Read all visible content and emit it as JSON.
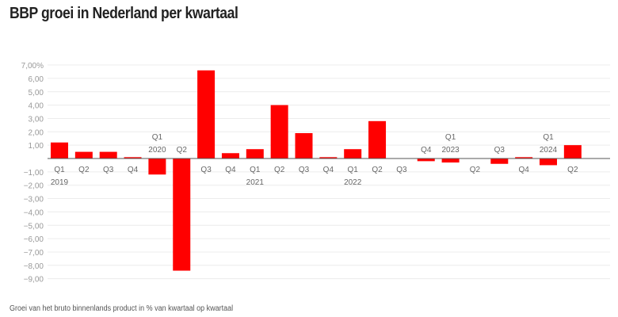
{
  "chart_data": {
    "type": "bar",
    "title": "BBP groei in Nederland per kwartaal",
    "footnote": "Groei van het bruto binnenlands product in % van kwartaal op kwartaal",
    "ylim": [
      -9,
      7
    ],
    "yticks": [
      7,
      6,
      5,
      4,
      3,
      2,
      1,
      -1,
      -2,
      -3,
      -4,
      -5,
      -6,
      -7,
      -8,
      -9
    ],
    "ytick_labels": [
      "7,00%",
      "6,00",
      "5,00",
      "4,00",
      "3,00",
      "2,00",
      "1,00",
      "−1,00",
      "−2,00",
      "−3,00",
      "−4,00",
      "−5,00",
      "−6,00",
      "−7,00",
      "−8,00",
      "−9,00"
    ],
    "grid": true,
    "bar_color": "#ff0000",
    "categories": [
      {
        "q": "Q1",
        "year": "2019"
      },
      {
        "q": "Q2"
      },
      {
        "q": "Q3"
      },
      {
        "q": "Q4"
      },
      {
        "q": "Q1",
        "year": "2020"
      },
      {
        "q": "Q2"
      },
      {
        "q": "Q3"
      },
      {
        "q": "Q4"
      },
      {
        "q": "Q1",
        "year": "2021"
      },
      {
        "q": "Q2"
      },
      {
        "q": "Q3"
      },
      {
        "q": "Q4"
      },
      {
        "q": "Q1",
        "year": "2022"
      },
      {
        "q": "Q2"
      },
      {
        "q": "Q3"
      },
      {
        "q": "Q4"
      },
      {
        "q": "Q1",
        "year": "2023"
      },
      {
        "q": "Q2"
      },
      {
        "q": "Q3"
      },
      {
        "q": "Q4"
      },
      {
        "q": "Q1",
        "year": "2024"
      },
      {
        "q": "Q2"
      }
    ],
    "values": [
      1.2,
      0.5,
      0.5,
      0.1,
      -1.2,
      -8.4,
      6.6,
      0.4,
      0.7,
      4.0,
      1.9,
      0.1,
      0.7,
      2.8,
      0.0,
      -0.2,
      -0.3,
      0.0,
      -0.4,
      0.1,
      -0.5,
      1.0
    ]
  }
}
